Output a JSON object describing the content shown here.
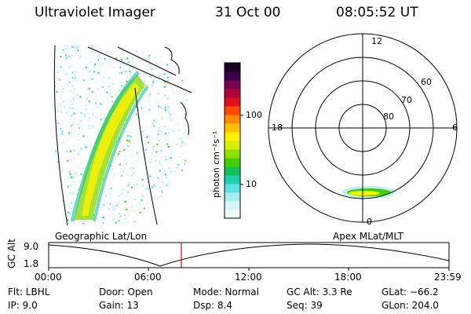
{
  "header": {
    "instrument": "Ultraviolet Imager",
    "date": "31 Oct 00",
    "time": "08:05:52 UT"
  },
  "colorbar": {
    "unit": "photon cm⁻²s⁻¹",
    "ticks": [
      "100",
      "10"
    ],
    "colors": [
      "#1a0022",
      "#3a0050",
      "#7a0050",
      "#b0003a",
      "#e0101a",
      "#ff4a00",
      "#ff8a00",
      "#ffc400",
      "#fff000",
      "#d4f000",
      "#8ee000",
      "#3ed000",
      "#10c060",
      "#20d0b0",
      "#60e0e0",
      "#a8eef0",
      "#d8f6f8",
      "#f2fbfc"
    ]
  },
  "polar": {
    "mlt_labels": {
      "top": "12",
      "left": "18",
      "right": "6",
      "bottom": "0"
    },
    "lat_labels": [
      "60",
      "70",
      "80"
    ]
  },
  "panels": {
    "geo_label": "Geographic Lat/Lon",
    "apex_label": "Apex MLat/MLT"
  },
  "alt_plot": {
    "ylabel": "GC Alt",
    "y_ticks": [
      "9.0",
      "1.8"
    ],
    "x_ticks": [
      "00:00",
      "06:00",
      "12:00",
      "18:00",
      "23:59"
    ],
    "marker_time": "08:05:52"
  },
  "info": {
    "flt": "Flt: LBHL",
    "ip": "IP:  9.0",
    "door": "Door: Open",
    "gain": "Gain: 13",
    "mode": "Mode: Normal",
    "dsp": "Dsp:    8.4",
    "gcalt": "GC Alt: 3.3 Re",
    "seq": "Seq: 39",
    "glat": "GLat: −66.2",
    "glon": "GLon: 204.0"
  }
}
